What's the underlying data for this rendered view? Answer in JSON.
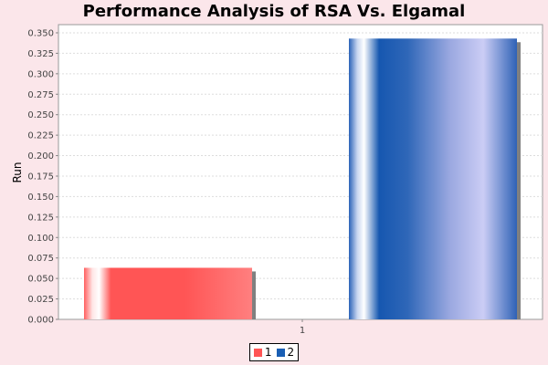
{
  "chart_data": {
    "type": "bar",
    "title": "Performance Analysis of RSA Vs. Elgamal",
    "xlabel": "",
    "ylabel": "Run",
    "categories": [
      "1"
    ],
    "series": [
      {
        "name": "1",
        "values": [
          0.063
        ],
        "color": "#ff5555"
      },
      {
        "name": "2",
        "values": [
          0.343
        ],
        "color": "#1a5fb4"
      }
    ],
    "ylim": [
      0,
      0.36
    ],
    "yticks": [
      "0.000",
      "0.025",
      "0.050",
      "0.075",
      "0.100",
      "0.125",
      "0.150",
      "0.175",
      "0.200",
      "0.225",
      "0.250",
      "0.275",
      "0.300",
      "0.325",
      "0.350"
    ],
    "grid": true,
    "legend_position": "bottom-center"
  }
}
